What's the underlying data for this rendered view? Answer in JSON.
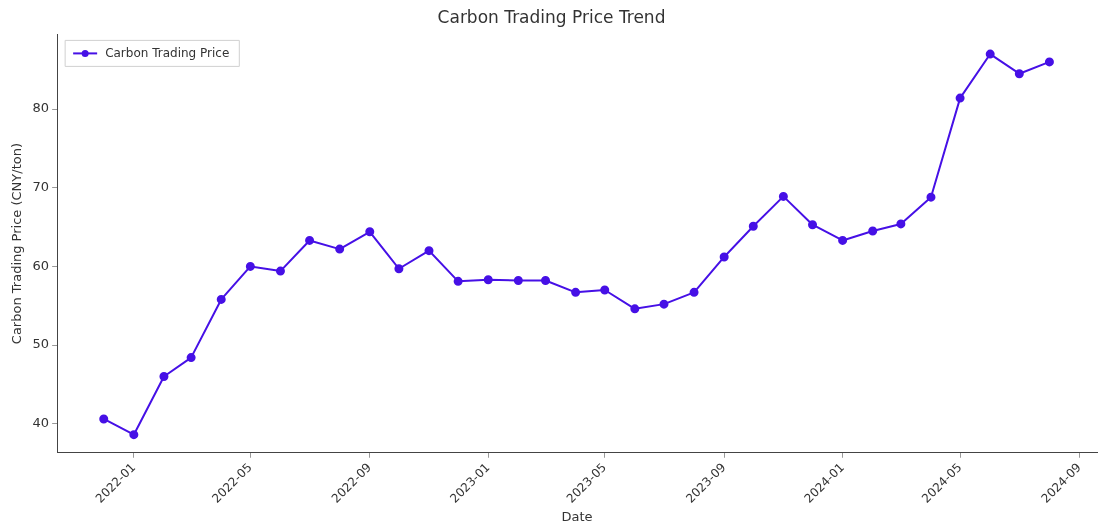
{
  "chart_data": {
    "type": "line",
    "title": "Carbon Trading Price Trend",
    "xlabel": "Date",
    "ylabel": "Carbon Trading Price (CNY/ton)",
    "x": [
      "2021-12",
      "2022-01",
      "2022-02",
      "2022-03",
      "2022-04",
      "2022-05",
      "2022-06",
      "2022-07",
      "2022-08",
      "2022-09",
      "2022-10",
      "2022-11",
      "2022-12",
      "2023-01",
      "2023-02",
      "2023-03",
      "2023-04",
      "2023-05",
      "2023-06",
      "2023-07",
      "2023-08",
      "2023-09",
      "2023-10",
      "2023-11",
      "2023-12",
      "2024-01",
      "2024-02",
      "2024-03",
      "2024-04",
      "2024-05",
      "2024-06",
      "2024-07",
      "2024-08"
    ],
    "series": [
      {
        "name": "Carbon Trading Price",
        "color": "#4610e6",
        "values": [
          40.6,
          38.6,
          46.0,
          48.4,
          55.8,
          60.0,
          59.4,
          63.3,
          62.2,
          64.4,
          59.7,
          62.0,
          58.1,
          58.3,
          58.2,
          58.2,
          56.7,
          57.0,
          54.6,
          55.2,
          56.7,
          61.2,
          65.1,
          68.9,
          65.3,
          63.3,
          64.5,
          65.4,
          68.8,
          81.4,
          87.0,
          84.5,
          86.0
        ]
      }
    ],
    "xlim": [
      "2021-10-14",
      "2024-09-19"
    ],
    "xticks": [
      "2022-01",
      "2022-05",
      "2022-09",
      "2023-01",
      "2023-05",
      "2023-09",
      "2024-01",
      "2024-05",
      "2024-09"
    ],
    "ylim": [
      36.3,
      89.5
    ],
    "yticks": [
      40,
      50,
      60,
      70,
      80
    ],
    "grid": false,
    "legend": "top left",
    "marker": "circle",
    "line_style": "solid"
  }
}
